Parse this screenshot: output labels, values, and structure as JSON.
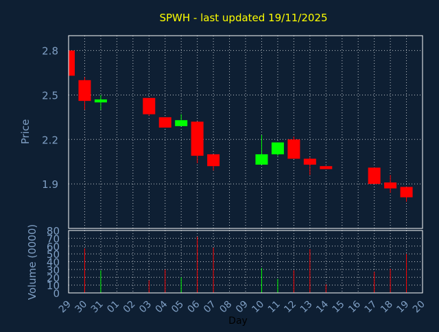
{
  "colors": {
    "background": "#0e1f33",
    "plot_border": "#ffffff",
    "grid": "#ffffff",
    "title": "#ffff00",
    "axis_text": "#7f9fc4",
    "up": "#00ff00",
    "down": "#ff0000"
  },
  "chart_data": [
    {
      "type": "candlestick",
      "title": "SPWH - last updated 19/11/2025",
      "ylabel": "Price",
      "ylim": [
        1.6,
        2.9
      ],
      "yticks": [
        1.9,
        2.2,
        2.5,
        2.8
      ],
      "ytick_labels": [
        "1.9",
        "2.2",
        "2.5",
        "2.8"
      ],
      "grid": true,
      "candles": [
        {
          "day": "29",
          "open": 2.8,
          "high": 2.8,
          "low": 2.63,
          "close": 2.63
        },
        {
          "day": "30",
          "open": 2.6,
          "high": 2.62,
          "low": 2.4,
          "close": 2.46
        },
        {
          "day": "31",
          "open": 2.45,
          "high": 2.5,
          "low": 2.4,
          "close": 2.47
        },
        {
          "day": "03",
          "open": 2.48,
          "high": 2.48,
          "low": 2.36,
          "close": 2.37
        },
        {
          "day": "04",
          "open": 2.35,
          "high": 2.35,
          "low": 2.28,
          "close": 2.28
        },
        {
          "day": "05",
          "open": 2.29,
          "high": 2.37,
          "low": 2.29,
          "close": 2.33
        },
        {
          "day": "06",
          "open": 2.32,
          "high": 2.32,
          "low": 2.04,
          "close": 2.09
        },
        {
          "day": "07",
          "open": 2.1,
          "high": 2.1,
          "low": 1.99,
          "close": 2.02
        },
        {
          "day": "10",
          "open": 2.03,
          "high": 2.23,
          "low": 2.03,
          "close": 2.1
        },
        {
          "day": "11",
          "open": 2.1,
          "high": 2.18,
          "low": 2.09,
          "close": 2.18
        },
        {
          "day": "12",
          "open": 2.2,
          "high": 2.22,
          "low": 2.07,
          "close": 2.07
        },
        {
          "day": "13",
          "open": 2.07,
          "high": 2.08,
          "low": 1.96,
          "close": 2.03
        },
        {
          "day": "14",
          "open": 2.02,
          "high": 2.02,
          "low": 2.0,
          "close": 2.0
        },
        {
          "day": "17",
          "open": 2.01,
          "high": 2.01,
          "low": 1.9,
          "close": 1.9
        },
        {
          "day": "18",
          "open": 1.91,
          "high": 1.96,
          "low": 1.84,
          "close": 1.87
        },
        {
          "day": "19",
          "open": 1.88,
          "high": 1.88,
          "low": 1.78,
          "close": 1.81
        }
      ]
    },
    {
      "type": "bar",
      "ylabel": "Volume (0000)",
      "xlabel": "Day",
      "ylim": [
        0,
        80
      ],
      "yticks": [
        0,
        10,
        20,
        30,
        40,
        50,
        60,
        70,
        80
      ],
      "ytick_labels": [
        "0",
        "10",
        "20",
        "30",
        "40",
        "50",
        "60",
        "70",
        "80"
      ],
      "categories": [
        "29",
        "30",
        "31",
        "01",
        "02",
        "03",
        "04",
        "05",
        "06",
        "07",
        "08",
        "09",
        "10",
        "11",
        "12",
        "13",
        "14",
        "15",
        "16",
        "17",
        "18",
        "19",
        "20"
      ],
      "volumes": [
        {
          "day": "30",
          "value": 57,
          "direction": "down"
        },
        {
          "day": "31",
          "value": 29,
          "direction": "up"
        },
        {
          "day": "03",
          "value": 16,
          "direction": "down"
        },
        {
          "day": "04",
          "value": 30,
          "direction": "down"
        },
        {
          "day": "05",
          "value": 20,
          "direction": "up"
        },
        {
          "day": "06",
          "value": 72,
          "direction": "down"
        },
        {
          "day": "07",
          "value": 58,
          "direction": "down"
        },
        {
          "day": "10",
          "value": 32,
          "direction": "up"
        },
        {
          "day": "11",
          "value": 18,
          "direction": "up"
        },
        {
          "day": "12",
          "value": 29,
          "direction": "down"
        },
        {
          "day": "13",
          "value": 56,
          "direction": "down"
        },
        {
          "day": "14",
          "value": 11,
          "direction": "down"
        },
        {
          "day": "17",
          "value": 27,
          "direction": "down"
        },
        {
          "day": "18",
          "value": 31,
          "direction": "down"
        },
        {
          "day": "19",
          "value": 50,
          "direction": "down"
        }
      ]
    }
  ]
}
